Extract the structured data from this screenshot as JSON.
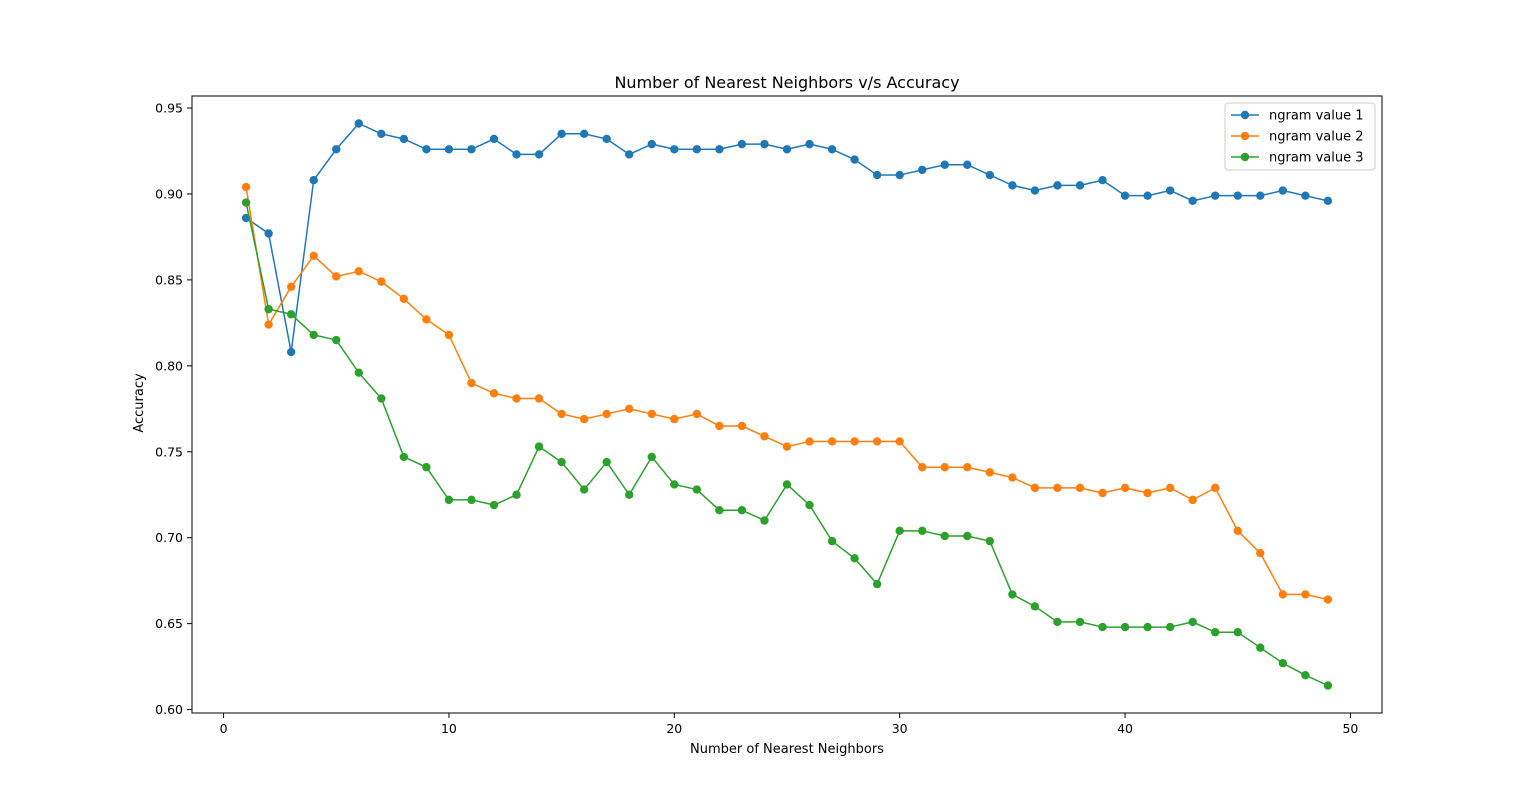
{
  "chart_data": {
    "type": "line",
    "title": "Number of Nearest Neighbors v/s Accuracy",
    "xlabel": "Number of Nearest Neighbors",
    "ylabel": "Accuracy",
    "xlim": [
      -1.4,
      51.4
    ],
    "ylim": [
      0.598,
      0.957
    ],
    "xticks": [
      0,
      10,
      20,
      30,
      40,
      50
    ],
    "yticks": [
      0.6,
      0.65,
      0.7,
      0.75,
      0.8,
      0.85,
      0.9,
      0.95
    ],
    "ytick_labels": [
      "0.60",
      "0.65",
      "0.70",
      "0.75",
      "0.80",
      "0.85",
      "0.90",
      "0.95"
    ],
    "grid": false,
    "legend_position": "top-right",
    "marker": "circle",
    "x": [
      1,
      2,
      3,
      4,
      5,
      6,
      7,
      8,
      9,
      10,
      11,
      12,
      13,
      14,
      15,
      16,
      17,
      18,
      19,
      20,
      21,
      22,
      23,
      24,
      25,
      26,
      27,
      28,
      29,
      30,
      31,
      32,
      33,
      34,
      35,
      36,
      37,
      38,
      39,
      40,
      41,
      42,
      43,
      44,
      45,
      46,
      47,
      48,
      49
    ],
    "series": [
      {
        "name": "ngram value 1",
        "color": "#1f77b4",
        "values": [
          0.886,
          0.877,
          0.808,
          0.908,
          0.926,
          0.941,
          0.935,
          0.932,
          0.926,
          0.926,
          0.926,
          0.932,
          0.923,
          0.923,
          0.935,
          0.935,
          0.932,
          0.923,
          0.929,
          0.926,
          0.926,
          0.926,
          0.929,
          0.929,
          0.926,
          0.929,
          0.926,
          0.92,
          0.911,
          0.911,
          0.914,
          0.917,
          0.917,
          0.911,
          0.905,
          0.902,
          0.905,
          0.905,
          0.908,
          0.899,
          0.899,
          0.902,
          0.896,
          0.899,
          0.899,
          0.899,
          0.902,
          0.899,
          0.896
        ]
      },
      {
        "name": "ngram value 2",
        "color": "#ff7f0e",
        "values": [
          0.904,
          0.824,
          0.846,
          0.864,
          0.852,
          0.855,
          0.849,
          0.839,
          0.827,
          0.818,
          0.79,
          0.784,
          0.781,
          0.781,
          0.772,
          0.769,
          0.772,
          0.775,
          0.772,
          0.769,
          0.772,
          0.765,
          0.765,
          0.759,
          0.753,
          0.756,
          0.756,
          0.756,
          0.756,
          0.756,
          0.741,
          0.741,
          0.741,
          0.738,
          0.735,
          0.729,
          0.729,
          0.729,
          0.726,
          0.729,
          0.726,
          0.729,
          0.722,
          0.729,
          0.704,
          0.691,
          0.667,
          0.667,
          0.664
        ]
      },
      {
        "name": "ngram value 3",
        "color": "#2ca02c",
        "values": [
          0.895,
          0.833,
          0.83,
          0.818,
          0.815,
          0.796,
          0.781,
          0.747,
          0.741,
          0.722,
          0.722,
          0.719,
          0.725,
          0.753,
          0.744,
          0.728,
          0.744,
          0.725,
          0.747,
          0.731,
          0.728,
          0.716,
          0.716,
          0.71,
          0.731,
          0.719,
          0.698,
          0.688,
          0.673,
          0.704,
          0.704,
          0.701,
          0.701,
          0.698,
          0.667,
          0.66,
          0.651,
          0.651,
          0.648,
          0.648,
          0.648,
          0.648,
          0.651,
          0.645,
          0.645,
          0.636,
          0.627,
          0.62,
          0.614
        ]
      }
    ]
  }
}
